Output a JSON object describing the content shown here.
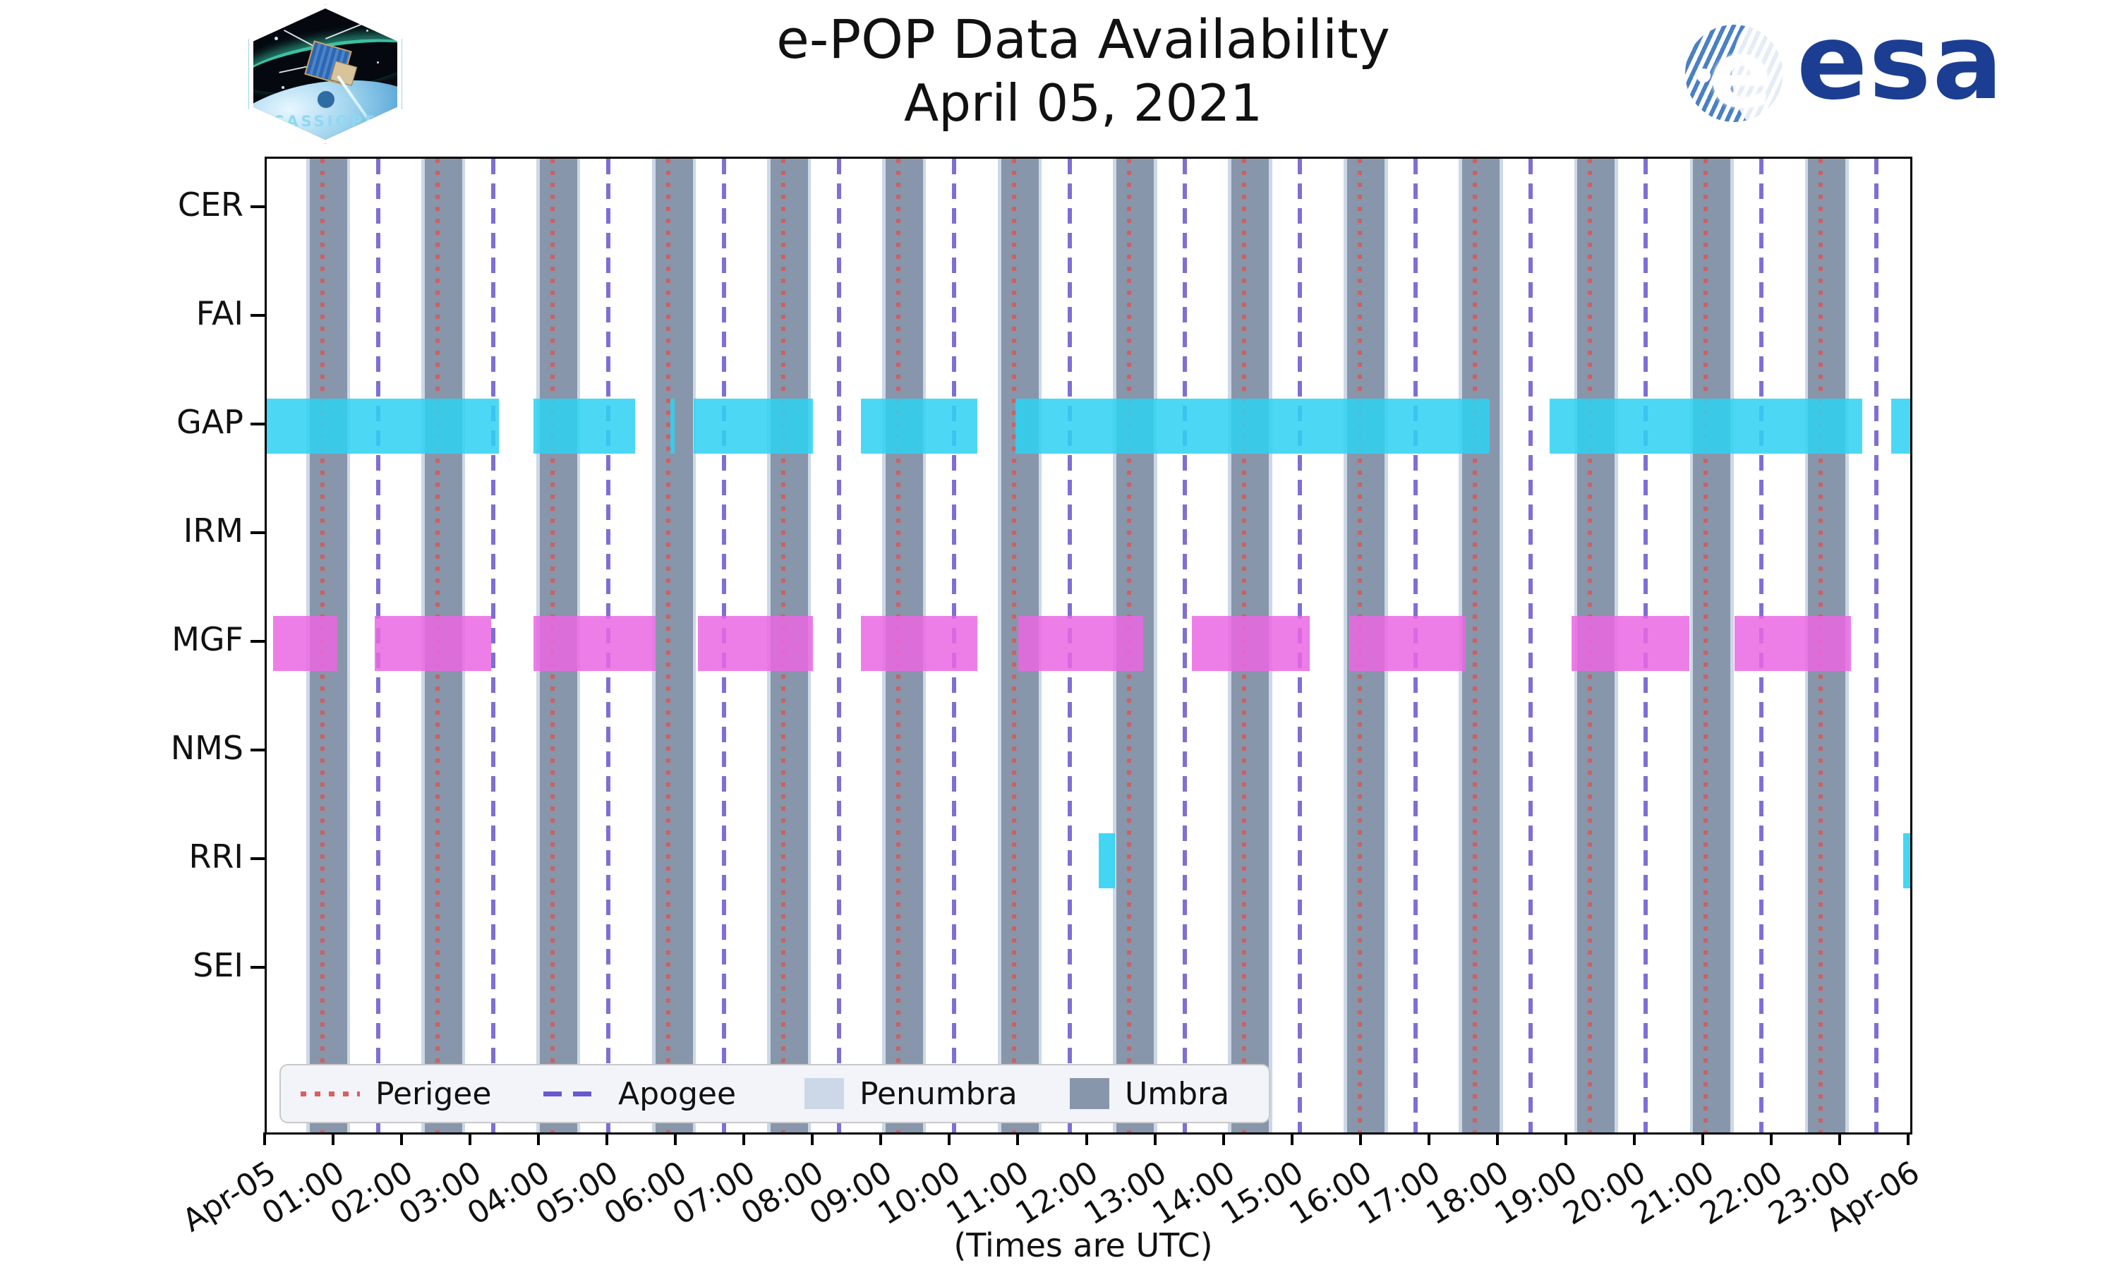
{
  "page": {
    "title_line1": "e-POP Data Availability",
    "title_line2": "April 05, 2021",
    "xaxis_label": "(Times are UTC)"
  },
  "branding": {
    "mission_patch_text": "CASSIOPE",
    "esa_text": "esa",
    "esa_color": "#1c3e92"
  },
  "legend": [
    {
      "label": "Perigee",
      "style": "dotted",
      "color": "#db5f5f"
    },
    {
      "label": "Apogee",
      "style": "dashed",
      "color": "#6a58cd"
    },
    {
      "label": "Penumbra",
      "style": "patch",
      "color": "#ccd8e7"
    },
    {
      "label": "Umbra",
      "style": "patch",
      "color": "#8796aa"
    }
  ],
  "chart_data": {
    "type": "timeline",
    "title": "e-POP Data Availability April 05, 2021",
    "xlabel": "(Times are UTC)",
    "x_range_hours": [
      0,
      24
    ],
    "x_tick_labels": [
      "Apr-05",
      "01:00",
      "02:00",
      "03:00",
      "04:00",
      "05:00",
      "06:00",
      "07:00",
      "08:00",
      "09:00",
      "10:00",
      "11:00",
      "12:00",
      "13:00",
      "14:00",
      "15:00",
      "16:00",
      "17:00",
      "18:00",
      "19:00",
      "20:00",
      "21:00",
      "22:00",
      "23:00",
      "Apr-06"
    ],
    "instruments": [
      "CER",
      "FAI",
      "GAP",
      "IRM",
      "MGF",
      "NMS",
      "RRI",
      "SEI"
    ],
    "orbit": {
      "period_hours": 1.683,
      "umbra_width_hours": 0.54,
      "penumbra_width_hours": 0.64,
      "umbra_centers_hours": [
        0.9,
        2.58,
        4.26,
        5.95,
        7.63,
        9.31,
        11.0,
        12.68,
        14.36,
        16.05,
        17.73,
        19.41,
        21.1,
        22.78
      ],
      "perigee_hours": [
        0.81,
        2.49,
        4.17,
        5.86,
        7.54,
        9.22,
        10.91,
        12.59,
        14.27,
        15.96,
        17.64,
        19.32,
        21.01,
        22.69
      ],
      "apogee_hours": [
        1.63,
        3.31,
        4.99,
        6.68,
        8.36,
        10.04,
        11.73,
        13.41,
        15.09,
        16.78,
        18.46,
        20.14,
        21.83,
        23.51
      ]
    },
    "availability_hours": {
      "CER": [],
      "FAI": [],
      "GAP": [
        [
          0.0,
          3.39
        ],
        [
          3.9,
          5.38
        ],
        [
          5.89,
          5.96
        ],
        [
          6.23,
          7.98
        ],
        [
          8.68,
          10.38
        ],
        [
          10.93,
          17.86
        ],
        [
          18.73,
          23.3
        ],
        [
          23.72,
          24.0
        ]
      ],
      "IRM": [],
      "MGF": [
        [
          0.09,
          1.03
        ],
        [
          1.58,
          3.28
        ],
        [
          3.9,
          5.68
        ],
        [
          6.3,
          7.98
        ],
        [
          8.68,
          10.38
        ],
        [
          10.97,
          12.8
        ],
        [
          13.51,
          15.23
        ],
        [
          15.81,
          17.51
        ],
        [
          19.05,
          20.77
        ],
        [
          21.43,
          23.13
        ]
      ],
      "NMS": [],
      "RRI": [
        [
          12.15,
          12.39
        ],
        [
          23.9,
          24.0
        ]
      ],
      "SEI": []
    },
    "colors": {
      "GAP_bar": "rgba(47,210,242,0.86)",
      "MGF_bar": "rgba(235,103,227,0.85)",
      "RRI_bar": "rgba(47,210,242,0.9)",
      "umbra": "#8796aa",
      "penumbra": "#ccd8e7",
      "perigee": "rgba(219,84,84,0.8)",
      "apogee": "rgba(103,86,204,0.85)"
    },
    "legend_position": "lower left",
    "grid": false
  }
}
